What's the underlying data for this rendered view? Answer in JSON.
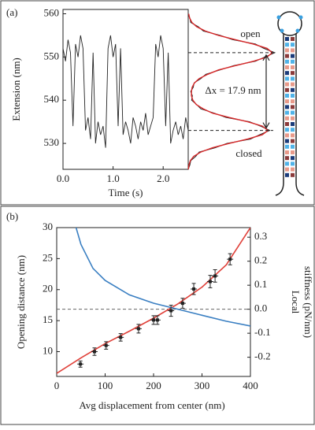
{
  "chart_data": [
    {
      "type": "line",
      "panel_label": "(a)",
      "x": [
        0,
        0.05,
        0.1,
        0.15,
        0.2,
        0.25,
        0.3,
        0.35,
        0.4,
        0.45,
        0.5,
        0.55,
        0.6,
        0.65,
        0.7,
        0.75,
        0.8,
        0.85,
        0.9,
        0.95,
        1.0,
        1.05,
        1.1,
        1.15,
        1.2,
        1.25,
        1.3,
        1.35,
        1.4,
        1.45,
        1.5,
        1.55,
        1.6,
        1.65,
        1.7,
        1.75,
        1.8,
        1.85,
        1.9,
        1.95,
        2.0,
        2.05,
        2.1,
        2.15,
        2.2,
        2.25,
        2.3,
        2.35,
        2.4,
        2.45,
        2.5
      ],
      "series": [
        {
          "color": "#222222",
          "values": [
            552,
            549,
            554,
            551,
            534,
            553,
            550,
            555,
            552,
            533,
            536,
            531,
            551,
            530,
            535,
            532,
            534,
            529,
            552,
            555,
            550,
            553,
            534,
            552,
            532,
            535,
            533,
            530,
            536,
            534,
            531,
            535,
            533,
            537,
            532,
            534,
            536,
            553,
            550,
            555,
            552,
            534,
            551,
            530,
            533,
            535,
            532,
            534,
            531,
            536,
            533
          ]
        }
      ],
      "xlim": [
        0,
        2.5
      ],
      "ylim": [
        524,
        561
      ],
      "xticks": [
        {
          "value": 0,
          "label": "0.0"
        },
        {
          "value": 1,
          "label": "1.0"
        },
        {
          "value": 2,
          "label": "2.0"
        }
      ],
      "yticks": [
        530,
        540,
        550,
        560
      ],
      "xlabel": "Time (s)",
      "ylabel": "Extension (nm)"
    },
    {
      "type": "line",
      "orientation": "horizontal",
      "x": [
        524,
        525,
        526,
        527,
        528,
        529,
        530,
        531,
        532,
        533,
        534,
        535,
        536,
        537,
        538,
        539,
        540,
        541,
        542,
        543,
        544,
        545,
        546,
        547,
        548,
        549,
        550,
        551,
        552,
        553,
        554,
        555,
        556,
        557,
        558,
        559,
        560
      ],
      "series": [
        {
          "color": "#222222",
          "values": [
            0,
            2,
            3,
            9,
            13,
            32,
            46,
            74,
            85,
            97,
            86,
            73,
            45,
            31,
            15,
            10,
            4,
            5,
            3,
            6,
            7,
            15,
            21,
            38,
            54,
            80,
            91,
            103,
            90,
            80,
            53,
            38,
            18,
            12,
            3,
            2,
            0
          ]
        },
        {
          "color": "#d62728",
          "values": [
            0.2,
            0.8,
            2.5,
            6.6,
            14.9,
            29.1,
            48.8,
            70.7,
            88.2,
            95,
            88.2,
            70.7,
            48.8,
            29.1,
            17.9,
            9.6,
            5.5,
            3.8,
            3.8,
            4.7,
            7.4,
            13,
            23.3,
            36,
            56.3,
            77.5,
            93.8,
            100,
            93.8,
            77.5,
            56.3,
            36,
            20.3,
            10,
            4.4,
            1.7,
            0.6
          ]
        }
      ],
      "xlim": [
        524,
        561
      ],
      "ylim": [
        0,
        105
      ],
      "reference_lines": [
        551,
        533
      ],
      "annotations": [
        "open",
        "closed",
        "Δx = 17.9 nm"
      ]
    },
    {
      "type": "scatter",
      "panel_label": "(b)",
      "series": [
        {
          "style": "points",
          "color": "#222222",
          "x": [
            49,
            78,
            102,
            132,
            169,
            200,
            208,
            236,
            260,
            283,
            317,
            327,
            358
          ],
          "values": [
            8.0,
            10.0,
            11.0,
            12.3,
            13.7,
            15.1,
            15.1,
            16.6,
            17.8,
            20.1,
            21.3,
            22.2,
            24.9
          ],
          "errors": [
            0.5,
            0.6,
            0.6,
            0.6,
            0.7,
            0.7,
            0.7,
            0.9,
            0.8,
            0.9,
            1.0,
            1.0,
            0.9
          ]
        },
        {
          "style": "line",
          "color": "#e0413a",
          "x": [
            0,
            50,
            100,
            150,
            200,
            250,
            300,
            350,
            400
          ],
          "values": [
            6.5,
            9.0,
            11.3,
            13.3,
            15.4,
            17.7,
            20.4,
            24.0,
            30
          ]
        },
        {
          "style": "line",
          "color": "#3a7fc2",
          "axis": "y2",
          "x": [
            40,
            50,
            75,
            100,
            150,
            200,
            250,
            300,
            350,
            400
          ],
          "values": [
            0.34,
            0.27,
            0.17,
            0.12,
            0.06,
            0.025,
            0.0,
            -0.025,
            -0.05,
            -0.07
          ]
        }
      ],
      "xlim": [
        0,
        400
      ],
      "ylim": [
        6,
        30
      ],
      "y2lim": [
        -0.28,
        0.34
      ],
      "xticks": [
        0,
        100,
        200,
        300,
        400
      ],
      "yticks": [
        10,
        15,
        20,
        25,
        30
      ],
      "y2ticks": [
        -0.2,
        -0.1,
        {
          "value": 0,
          "label": "0.0"
        },
        0.1,
        0.2,
        0.3
      ],
      "reference_line_y2": 0,
      "xlabel": "Avg displacement from center (nm)",
      "ylabel": "Opening distance (nm)",
      "y2label": [
        "Local",
        "stiffness (pN/nm)"
      ]
    }
  ]
}
